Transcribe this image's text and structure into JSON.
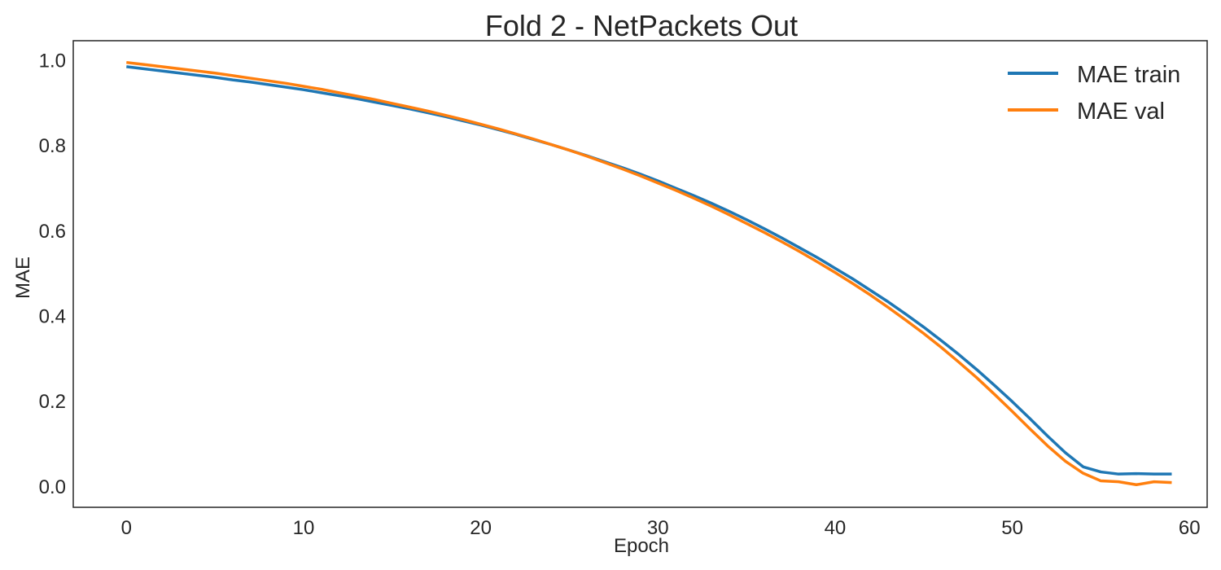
{
  "chart_data": {
    "type": "line",
    "title": "Fold 2 - NetPackets Out",
    "xlabel": "Epoch",
    "ylabel": "MAE",
    "xlim": [
      -3,
      61
    ],
    "ylim": [
      -0.05,
      1.045
    ],
    "xticks": [
      0,
      10,
      20,
      30,
      40,
      50,
      60
    ],
    "yticks": [
      0.0,
      0.2,
      0.4,
      0.6,
      0.8,
      1.0
    ],
    "xtick_labels": [
      "0",
      "10",
      "20",
      "30",
      "40",
      "50",
      "60"
    ],
    "ytick_labels": [
      "0.0",
      "0.2",
      "0.4",
      "0.6",
      "0.8",
      "1.0"
    ],
    "grid": false,
    "legend_position": "top-right",
    "x": [
      0,
      1,
      2,
      3,
      4,
      5,
      6,
      7,
      8,
      9,
      10,
      11,
      12,
      13,
      14,
      15,
      16,
      17,
      18,
      19,
      20,
      21,
      22,
      23,
      24,
      25,
      26,
      27,
      28,
      29,
      30,
      31,
      32,
      33,
      34,
      35,
      36,
      37,
      38,
      39,
      40,
      41,
      42,
      43,
      44,
      45,
      46,
      47,
      48,
      49,
      50,
      51,
      52,
      53,
      54,
      55,
      56,
      57,
      58,
      59
    ],
    "series": [
      {
        "name": "MAE train",
        "color": "#1f77b4",
        "values": [
          0.984,
          0.979,
          0.974,
          0.969,
          0.964,
          0.959,
          0.953,
          0.948,
          0.942,
          0.936,
          0.93,
          0.923,
          0.916,
          0.909,
          0.901,
          0.893,
          0.885,
          0.876,
          0.867,
          0.857,
          0.847,
          0.836,
          0.825,
          0.813,
          0.801,
          0.788,
          0.775,
          0.761,
          0.747,
          0.732,
          0.716,
          0.699,
          0.682,
          0.664,
          0.645,
          0.625,
          0.604,
          0.582,
          0.559,
          0.536,
          0.511,
          0.486,
          0.459,
          0.432,
          0.403,
          0.373,
          0.341,
          0.308,
          0.273,
          0.236,
          0.198,
          0.158,
          0.117,
          0.078,
          0.045,
          0.033,
          0.028,
          0.029,
          0.028,
          0.028
        ]
      },
      {
        "name": "MAE val",
        "color": "#ff7f0e",
        "values": [
          0.994,
          0.989,
          0.984,
          0.979,
          0.974,
          0.969,
          0.963,
          0.957,
          0.951,
          0.945,
          0.938,
          0.931,
          0.923,
          0.915,
          0.907,
          0.898,
          0.889,
          0.88,
          0.87,
          0.86,
          0.849,
          0.838,
          0.826,
          0.814,
          0.801,
          0.788,
          0.774,
          0.759,
          0.744,
          0.728,
          0.711,
          0.694,
          0.676,
          0.657,
          0.637,
          0.616,
          0.595,
          0.573,
          0.55,
          0.526,
          0.501,
          0.475,
          0.448,
          0.419,
          0.389,
          0.358,
          0.325,
          0.29,
          0.254,
          0.215,
          0.175,
          0.134,
          0.094,
          0.058,
          0.03,
          0.012,
          0.01,
          0.003,
          0.01,
          0.008
        ]
      }
    ]
  }
}
